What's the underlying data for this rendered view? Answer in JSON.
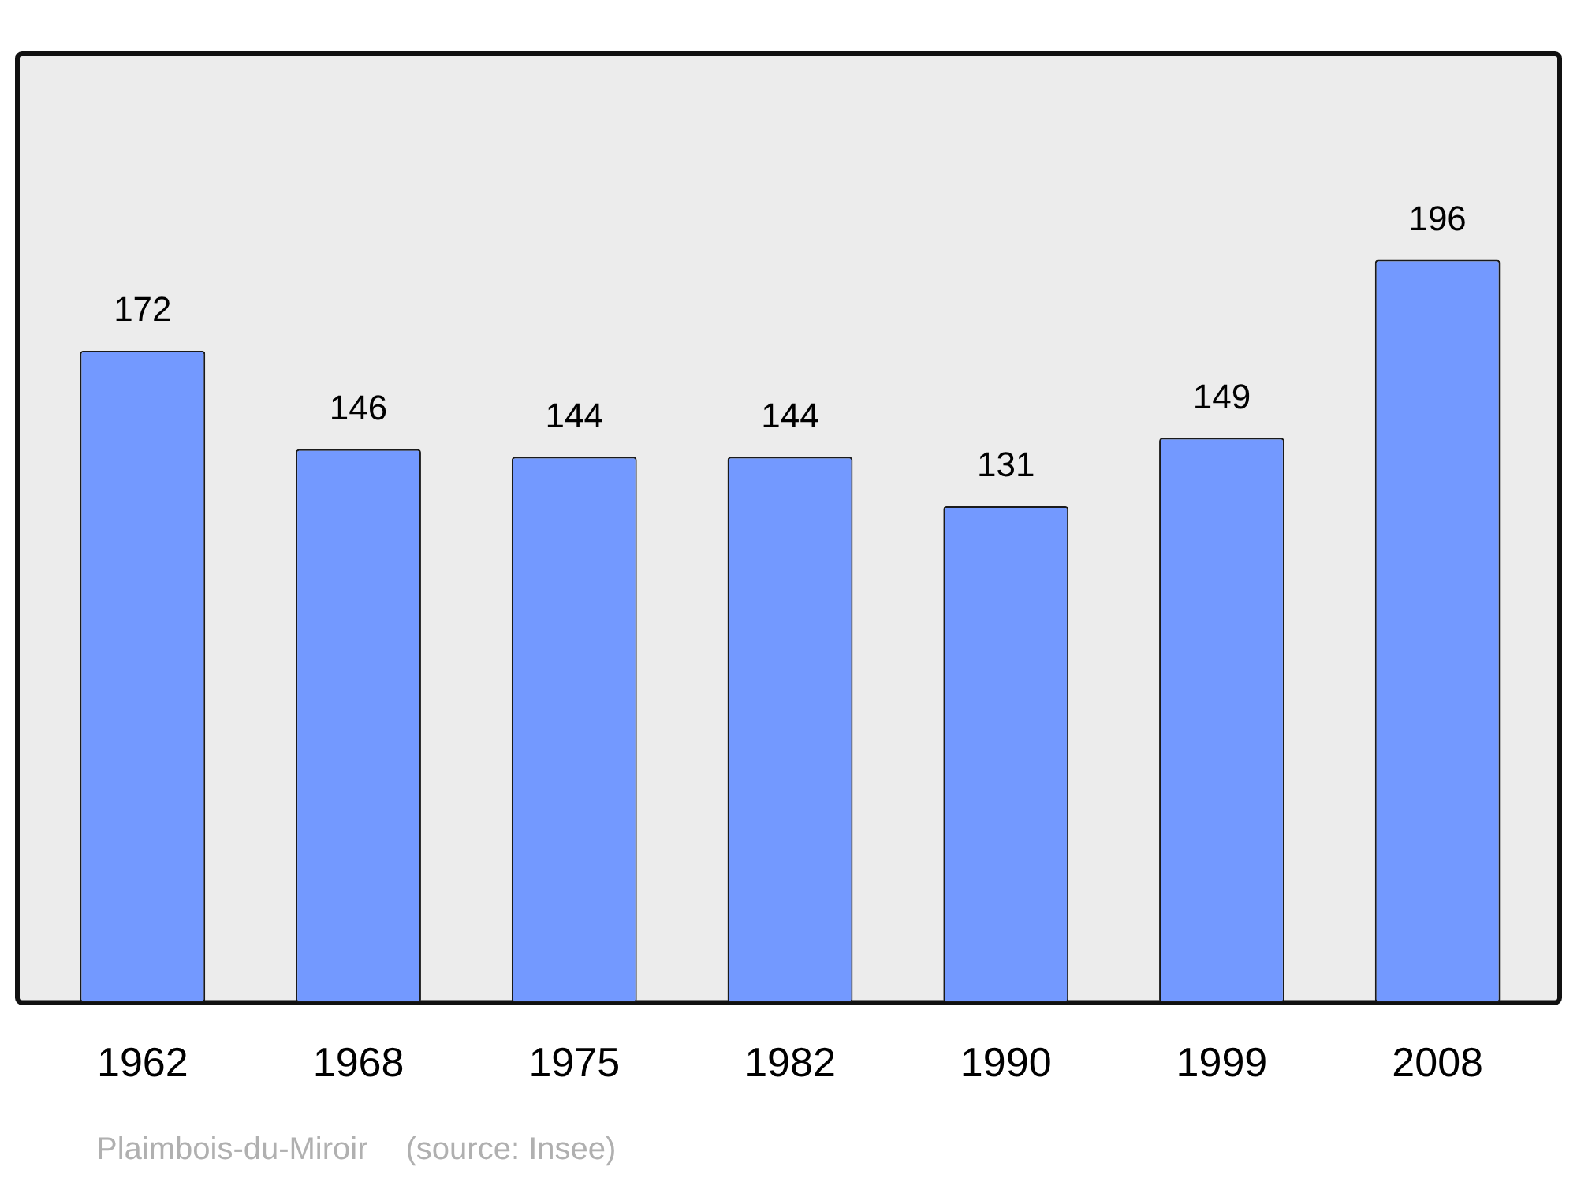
{
  "chart_data": {
    "type": "bar",
    "categories": [
      "1962",
      "1968",
      "1975",
      "1982",
      "1990",
      "1999",
      "2008"
    ],
    "values": [
      172,
      146,
      144,
      144,
      131,
      149,
      196
    ],
    "color": "#7399ff",
    "data_labels": true,
    "annotations": [
      "Plaimbois-du-Miroir",
      "(source: Insee)"
    ]
  }
}
